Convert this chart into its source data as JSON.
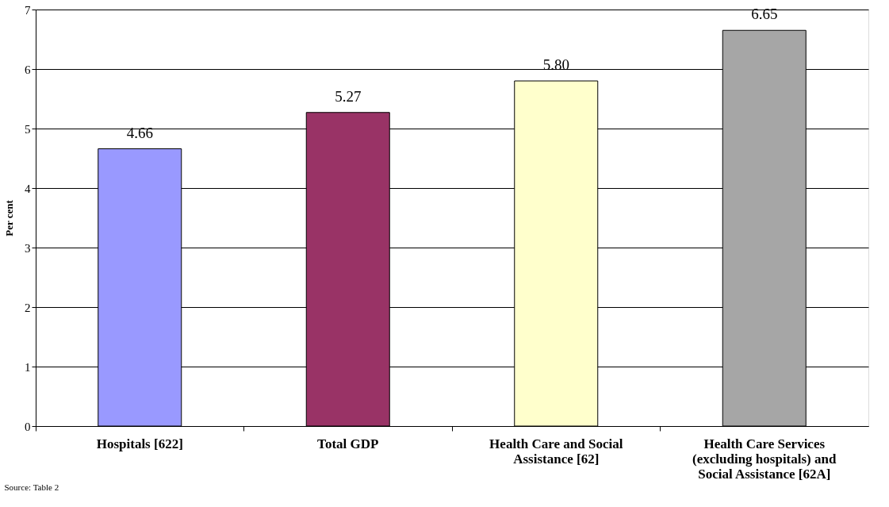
{
  "chart_data": {
    "type": "bar",
    "ylabel": "Per cent",
    "categories": [
      "Hospitals [622]",
      "Total GDP",
      "Health Care and Social Assistance [62]",
      "Health Care Services (excluding hospitals) and Social Assistance [62A]"
    ],
    "values": [
      4.66,
      5.27,
      5.8,
      6.65
    ],
    "value_labels": [
      "4.66",
      "5.27",
      "5.80",
      "6.65"
    ],
    "colors": [
      "#9999ff",
      "#993366",
      "#ffffcc",
      "#a6a6a6"
    ],
    "ylim": [
      0,
      7
    ],
    "yticks": [
      0,
      1,
      2,
      3,
      4,
      5,
      6,
      7
    ],
    "grid": "y",
    "annotations": [
      "Source: Table 2"
    ]
  }
}
